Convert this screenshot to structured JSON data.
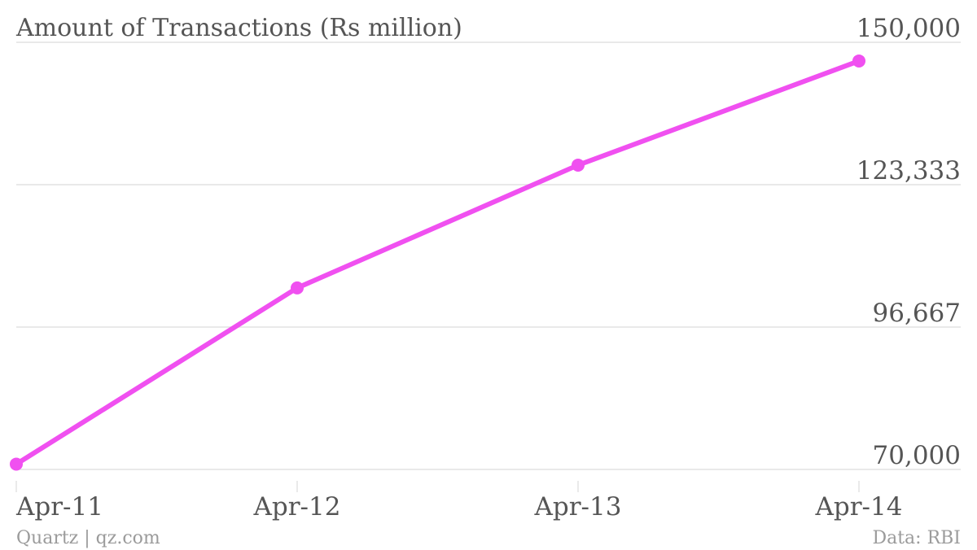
{
  "chart_data": {
    "type": "line",
    "title": "Amount of Transactions (Rs million)",
    "x": [
      "Apr-11",
      "Apr-12",
      "Apr-13",
      "Apr-14"
    ],
    "series": [
      {
        "values": [
          71000,
          104000,
          127000,
          146500
        ]
      }
    ],
    "yticks": [
      70000,
      96667,
      123333,
      150000
    ],
    "ytick_labels": [
      "70,000",
      "96,667",
      "123,333",
      "150,000"
    ],
    "ylim": [
      70000,
      150000
    ],
    "grid": true,
    "y_axis_position": "right"
  },
  "footer": {
    "source_left": "Quartz | qz.com",
    "source_right": "Data: RBI"
  },
  "colors": {
    "series": "#f050f0",
    "text": "#555555",
    "footer": "#9b9b9b",
    "grid": "#e2e2e2"
  }
}
